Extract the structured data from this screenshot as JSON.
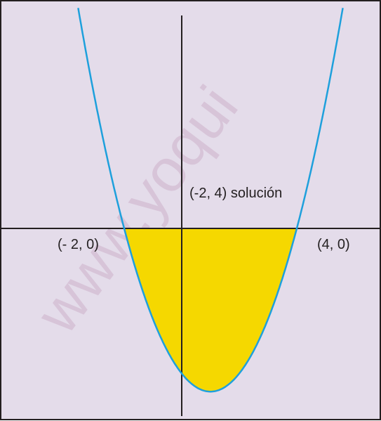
{
  "labels": {
    "root_left": "(- 2, 0)",
    "root_right": "(4, 0)",
    "solution": "(-2, 4) solución"
  },
  "watermark": "www.yoqui"
}
